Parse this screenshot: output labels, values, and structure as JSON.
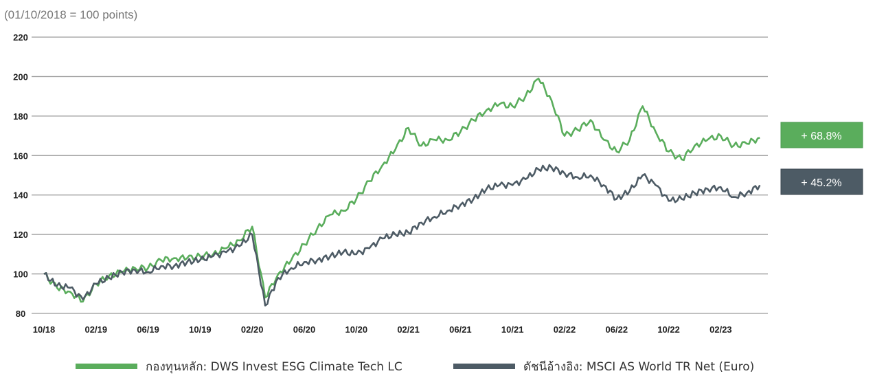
{
  "chart_data": {
    "type": "line",
    "subtitle": "(01/10/2018 = 100 points)",
    "ylim": [
      80,
      220
    ],
    "yticks": [
      "80",
      "100",
      "120",
      "140",
      "160",
      "180",
      "200",
      "220"
    ],
    "xticks": [
      "10/18",
      "02/19",
      "06/19",
      "10/19",
      "02/20",
      "06/20",
      "10/20",
      "02/21",
      "06/21",
      "10/21",
      "02/22",
      "06/22",
      "10/22",
      "02/23"
    ],
    "x_start": "10/18",
    "x_months": 56,
    "grid": "horizontal",
    "legend_position": "bottom",
    "series": [
      {
        "name": "กองทุนหลัก: DWS Invest ESG Climate Tech LC",
        "color": "#5aad5c",
        "end_label": "+ 68.8%",
        "values": [
          100,
          93,
          91,
          86,
          95,
          99,
          101,
          103,
          103,
          107,
          108,
          108,
          109,
          110,
          113,
          117,
          124,
          88,
          100,
          107,
          115,
          123,
          130,
          132,
          138,
          147,
          155,
          163,
          174,
          165,
          168,
          168,
          172,
          178,
          183,
          186,
          185,
          190,
          199,
          188,
          170,
          173,
          178,
          168,
          162,
          168,
          185,
          172,
          162,
          158,
          165,
          168,
          170,
          165,
          166,
          169
        ]
      },
      {
        "name": "ดัชนีอ้างอิง: MSCI AS World TR Net (Euro)",
        "color": "#4d5b65",
        "end_label": "+ 45.2%",
        "values": [
          100,
          94,
          93,
          87,
          95,
          98,
          101,
          102,
          101,
          104,
          104,
          106,
          107,
          109,
          111,
          114,
          120,
          84,
          98,
          103,
          106,
          107,
          109,
          111,
          110,
          113,
          118,
          120,
          121,
          126,
          129,
          132,
          135,
          138,
          143,
          145,
          145,
          148,
          153,
          154,
          151,
          149,
          150,
          145,
          138,
          142,
          150,
          145,
          137,
          138,
          141,
          143,
          144,
          139,
          141,
          145
        ]
      }
    ]
  }
}
